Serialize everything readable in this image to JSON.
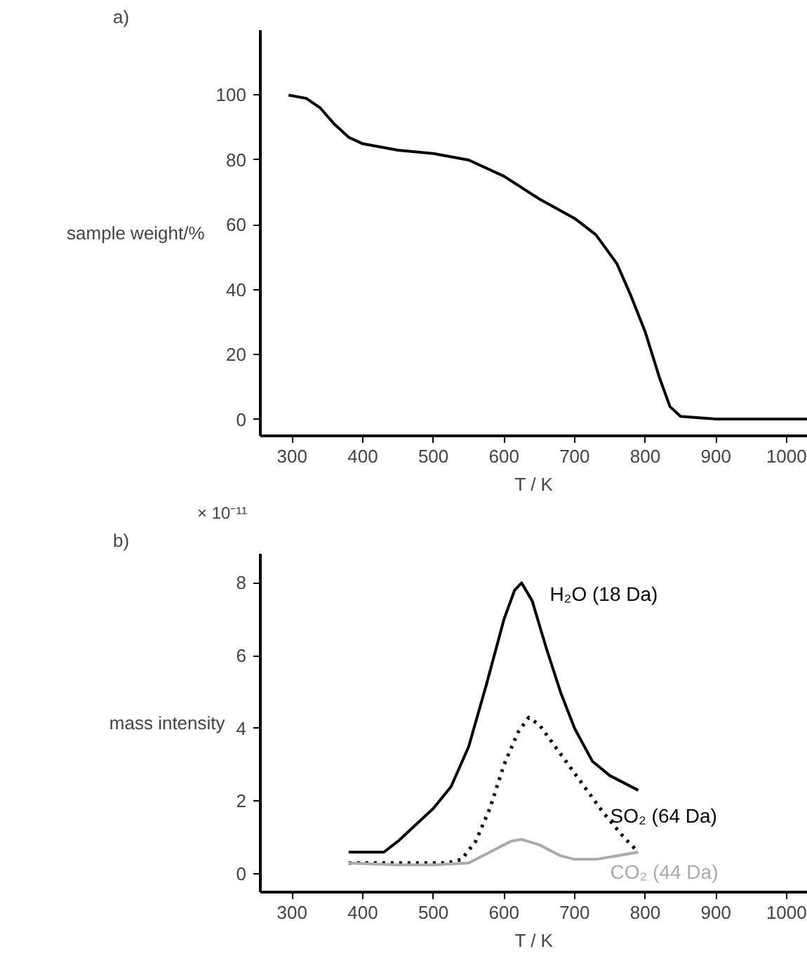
{
  "chart_data": [
    {
      "type": "line",
      "xlabel": "T / K",
      "ylabel": "sample weight/%",
      "annotations": [
        "a)"
      ],
      "xlim": [
        255,
        1030
      ],
      "ylim": [
        -5,
        120
      ],
      "xticks": [
        300,
        400,
        500,
        600,
        700,
        800,
        900,
        1000
      ],
      "yticks": [
        0,
        20,
        40,
        60,
        80,
        100
      ],
      "grid": false,
      "legend": false,
      "marker": "none",
      "line_style": "solid",
      "series": [
        {
          "color": "#000000",
          "x": [
            295,
            320,
            340,
            360,
            380,
            400,
            450,
            500,
            550,
            600,
            650,
            700,
            730,
            760,
            780,
            800,
            820,
            835,
            850,
            880,
            900,
            1030
          ],
          "values": [
            100,
            99,
            96,
            91,
            87,
            85,
            83,
            82,
            80,
            75,
            68,
            62,
            57,
            48,
            38,
            27,
            13,
            4,
            1,
            0.5,
            0.2,
            0.2
          ]
        }
      ]
    },
    {
      "type": "line",
      "xlabel": "T / K",
      "ylabel": "mass intensity",
      "annotations": [
        "b)",
        "× 10⁻¹¹"
      ],
      "xlim": [
        255,
        1030
      ],
      "ylim": [
        -0.5,
        8.8
      ],
      "xticks": [
        300,
        400,
        500,
        600,
        700,
        800,
        900,
        1000
      ],
      "yticks": [
        0,
        2,
        4,
        6,
        8
      ],
      "grid": false,
      "legend": false,
      "marker": "none",
      "series": [
        {
          "name": "H₂O (18 Da)",
          "color": "#000000",
          "line_style": "solid",
          "x": [
            380,
            430,
            450,
            500,
            525,
            550,
            575,
            600,
            615,
            625,
            640,
            660,
            680,
            700,
            725,
            750,
            790
          ],
          "values": [
            0.6,
            0.6,
            0.9,
            1.8,
            2.4,
            3.5,
            5.2,
            7.0,
            7.8,
            8.0,
            7.5,
            6.2,
            5.0,
            4.0,
            3.1,
            2.7,
            2.3
          ]
        },
        {
          "name": "SO₂ (64 Da)",
          "color": "#000000",
          "line_style": "dotted",
          "x": [
            380,
            450,
            520,
            540,
            560,
            580,
            600,
            620,
            635,
            650,
            680,
            710,
            740,
            770,
            790
          ],
          "values": [
            0.3,
            0.3,
            0.3,
            0.4,
            0.9,
            1.8,
            3.0,
            3.9,
            4.3,
            4.1,
            3.3,
            2.5,
            1.7,
            1.0,
            0.6
          ]
        },
        {
          "name": "CO₂ (44 Da)",
          "color": "#aaaaaa",
          "line_style": "solid",
          "x": [
            380,
            450,
            500,
            550,
            580,
            610,
            625,
            650,
            680,
            700,
            730,
            760,
            790
          ],
          "values": [
            0.3,
            0.25,
            0.25,
            0.3,
            0.6,
            0.9,
            0.95,
            0.8,
            0.5,
            0.4,
            0.4,
            0.5,
            0.6
          ]
        }
      ]
    }
  ]
}
